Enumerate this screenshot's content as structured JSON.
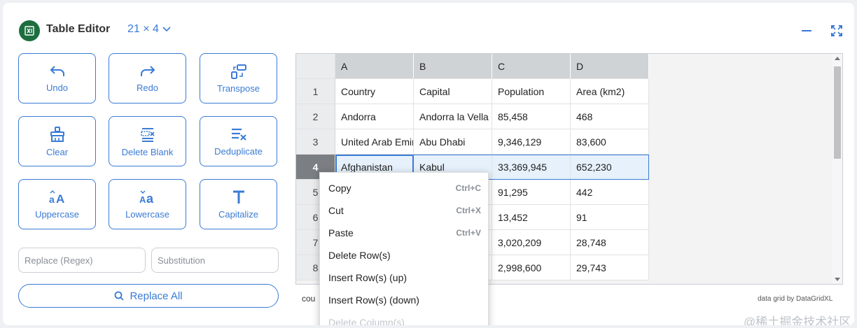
{
  "header": {
    "title": "Table Editor",
    "dims": "21 × 4",
    "brand_color": "#1d6e3f",
    "accent_color": "#3a7bd5"
  },
  "toolbar": {
    "undo": "Undo",
    "redo": "Redo",
    "transpose": "Transpose",
    "clear": "Clear",
    "delete_blank": "Delete Blank",
    "deduplicate": "Deduplicate",
    "uppercase": "Uppercase",
    "lowercase": "Lowercase",
    "capitalize": "Capitalize"
  },
  "replace": {
    "regex_placeholder": "Replace (Regex)",
    "regex_value": "",
    "sub_placeholder": "Substitution",
    "sub_value": "",
    "button": "Replace All"
  },
  "grid": {
    "columns": [
      "A",
      "B",
      "C",
      "D"
    ],
    "row_numbers": [
      "1",
      "2",
      "3",
      "4",
      "5",
      "6",
      "7",
      "8"
    ],
    "rows": [
      [
        "Country",
        "Capital",
        "Population",
        "Area (km2)"
      ],
      [
        "Andorra",
        "Andorra la Vella",
        "85,458",
        "468"
      ],
      [
        "United Arab Emirates",
        "Abu Dhabi",
        "9,346,129",
        "83,600"
      ],
      [
        "Afghanistan",
        "Kabul",
        "33,369,945",
        "652,230"
      ],
      [
        "",
        "",
        "91,295",
        "442"
      ],
      [
        "",
        "",
        "13,452",
        "91"
      ],
      [
        "",
        "",
        "3,020,209",
        "28,748"
      ],
      [
        "",
        "",
        "2,998,600",
        "29,743"
      ]
    ],
    "selected_row": "4"
  },
  "context_menu": {
    "items": [
      {
        "label": "Copy",
        "shortcut": "Ctrl+C"
      },
      {
        "label": "Cut",
        "shortcut": "Ctrl+X"
      },
      {
        "label": "Paste",
        "shortcut": "Ctrl+V"
      },
      {
        "label": "Delete Row(s)",
        "shortcut": ""
      },
      {
        "label": "Insert Row(s) (up)",
        "shortcut": ""
      },
      {
        "label": "Insert Row(s) (down)",
        "shortcut": ""
      },
      {
        "label": "Delete Column(s)",
        "shortcut": ""
      }
    ]
  },
  "footer": {
    "left": "cou",
    "credit": "data grid by DataGridXL"
  },
  "watermark": "@稀土掘金技术社区"
}
